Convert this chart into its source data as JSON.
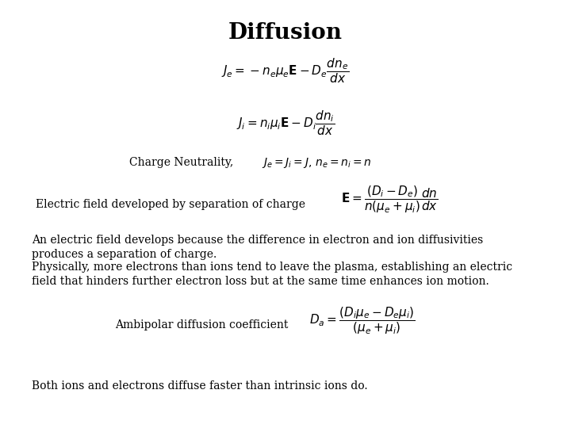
{
  "title": "Diffusion",
  "background_color": "#ffffff",
  "text_color": "#000000",
  "title_fontsize": 20,
  "eq1": "$J_e = -n_e\\mu_e\\mathbf{E} - D_e\\dfrac{dn_e}{dx}$",
  "eq2": "$J_i = n_i\\mu_i\\mathbf{E} - D_i\\dfrac{dn_i}{dx}$",
  "charge_neutrality_label": "Charge Neutrality,",
  "charge_neutrality_eq": "$J_e = J_i = J,\\, n_e = n_i = n$",
  "efield_label": "Electric field developed by separation of charge",
  "efield_eq": "$\\mathbf{E} = \\dfrac{(D_i - D_e)}{n(\\mu_e + \\mu_i)}\\dfrac{dn}{dx}$",
  "para1_line1": "An electric field develops because the difference in electron and ion diffusivities",
  "para1_line2": "produces a separation of charge.",
  "para2_line1": "Physically, more electrons than ions tend to leave the plasma, establishing an electric",
  "para2_line2": "field that hinders further electron loss but at the same time enhances ion motion.",
  "ambipolar_label": "Ambipolar diffusion coefficient",
  "ambipolar_eq": "$D_a = \\dfrac{(D_i\\mu_e - D_e\\mu_i)}{(\\mu_e + \\mu_i)}$",
  "final_text": "Both ions and electrons diffuse faster than intrinsic ions do.",
  "fs_title": 20,
  "fs_eq": 11,
  "fs_text": 10,
  "fs_label": 10,
  "fs_cn_eq": 10
}
